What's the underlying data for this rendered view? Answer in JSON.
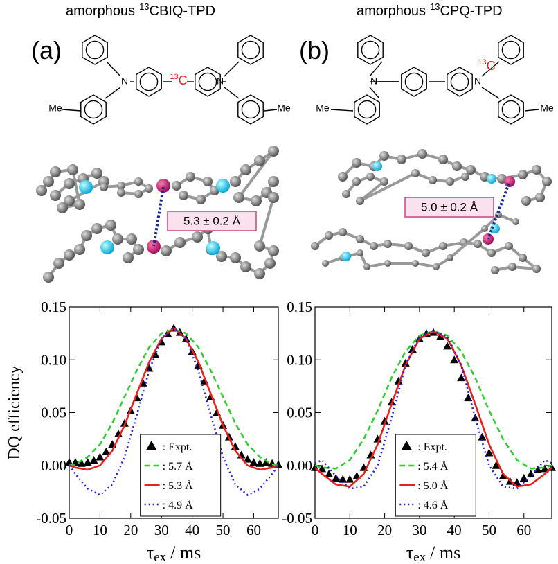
{
  "chart_data": [
    {
      "type": "line",
      "panel_label": "(a)",
      "title": {
        "prefix": "amorphous",
        "isotope": "13",
        "compound": "CBIQ-TPD"
      },
      "structure": {
        "labels": [
          "N",
          "N",
          "Me",
          "Me"
        ],
        "isotope": "13",
        "atom": "C"
      },
      "annotation": "5.3 ± 0.2 Å",
      "ylabel": "DQ efficiency",
      "xlabel": {
        "symbol": "τ",
        "subscript": "ex",
        "unit": "/ ms"
      },
      "xlim": [
        0,
        68
      ],
      "xticks": [
        0,
        10,
        20,
        30,
        40,
        50,
        60
      ],
      "ylim": [
        -0.05,
        0.15
      ],
      "yticks": [
        -0.05,
        {
          "value": 0,
          "label": "0.00"
        },
        0.05,
        {
          "value": 0.1,
          "label": "0.10"
        },
        0.15
      ],
      "legend": "lower center",
      "series": [
        {
          "name": ": Expt.",
          "color": "#000000",
          "style": "markers",
          "x": [
            0,
            2,
            4,
            6,
            8,
            10,
            12,
            14,
            16,
            18,
            20,
            22,
            24,
            26,
            28,
            30,
            32,
            34,
            36,
            38,
            40,
            42,
            44,
            46,
            48,
            50,
            52,
            54,
            56,
            58,
            60,
            62,
            64,
            66,
            68
          ],
          "values": [
            0.003,
            0.003,
            0.002,
            0.003,
            0.005,
            0.008,
            0.013,
            0.02,
            0.03,
            0.04,
            0.052,
            0.064,
            0.078,
            0.092,
            0.105,
            0.117,
            0.125,
            0.13,
            0.126,
            0.12,
            0.108,
            0.095,
            0.08,
            0.065,
            0.05,
            0.038,
            0.027,
            0.018,
            0.01,
            0.006,
            0.003,
            0.002,
            0.003,
            0.002,
            0.001
          ]
        },
        {
          "name": ": 5.7 Å",
          "color": "#33cc33",
          "style": "dashed",
          "x": [
            0,
            2,
            6,
            10,
            14,
            18,
            22,
            26,
            30,
            34,
            38,
            42,
            46,
            50,
            54,
            58,
            62,
            66,
            68
          ],
          "values": [
            0,
            0.001,
            0.008,
            0.02,
            0.04,
            0.065,
            0.09,
            0.112,
            0.125,
            0.129,
            0.125,
            0.112,
            0.09,
            0.065,
            0.04,
            0.02,
            0.008,
            0.001,
            0
          ]
        },
        {
          "name": ": 5.3 Å",
          "color": "#e8211f",
          "style": "solid",
          "x": [
            0,
            2,
            6,
            10,
            14,
            18,
            22,
            26,
            30,
            34,
            38,
            42,
            46,
            50,
            54,
            58,
            62,
            66,
            68
          ],
          "values": [
            0,
            -0.002,
            -0.004,
            0,
            0.014,
            0.038,
            0.068,
            0.098,
            0.12,
            0.13,
            0.12,
            0.098,
            0.068,
            0.038,
            0.014,
            0,
            -0.004,
            -0.002,
            0
          ]
        },
        {
          "name": ": 4.9 Å",
          "color": "#2222cc",
          "style": "dotted",
          "x": [
            0,
            2,
            6,
            10,
            14,
            18,
            22,
            26,
            30,
            34,
            38,
            42,
            46,
            50,
            54,
            58,
            62,
            66,
            68
          ],
          "values": [
            0,
            -0.008,
            -0.022,
            -0.028,
            -0.018,
            0.008,
            0.048,
            0.09,
            0.12,
            0.13,
            0.12,
            0.09,
            0.048,
            0.008,
            -0.018,
            -0.028,
            -0.022,
            -0.008,
            0
          ]
        }
      ]
    },
    {
      "type": "line",
      "panel_label": "(b)",
      "title": {
        "prefix": "amorphous",
        "isotope": "13",
        "compound": "CPQ-TPD"
      },
      "structure": {
        "labels": [
          "N",
          "N",
          "Me",
          "Me"
        ],
        "isotope": "13",
        "atom": "C"
      },
      "annotation": "5.0 ± 0.2 Å",
      "xlabel": {
        "symbol": "τ",
        "subscript": "ex",
        "unit": "/ ms"
      },
      "xlim": [
        0,
        68
      ],
      "xticks": [
        0,
        10,
        20,
        30,
        40,
        50,
        60
      ],
      "ylim": [
        -0.05,
        0.15
      ],
      "yticks": [
        -0.05,
        {
          "value": 0,
          "label": "0.00"
        },
        0.05,
        {
          "value": 0.1,
          "label": "0.10"
        },
        0.15
      ],
      "legend": "lower center",
      "series": [
        {
          "name": ": Expt.",
          "color": "#000000",
          "style": "markers",
          "x": [
            0,
            2,
            4,
            6,
            8,
            10,
            12,
            14,
            16,
            18,
            20,
            22,
            24,
            26,
            28,
            30,
            32,
            34,
            36,
            38,
            40,
            42,
            44,
            46,
            48,
            50,
            52,
            54,
            56,
            58,
            60,
            62,
            64,
            66,
            68
          ],
          "values": [
            -0.002,
            -0.003,
            -0.008,
            -0.012,
            -0.013,
            -0.013,
            -0.01,
            -0.002,
            0.01,
            0.025,
            0.042,
            0.06,
            0.08,
            0.097,
            0.11,
            0.12,
            0.125,
            0.126,
            0.122,
            0.113,
            0.1,
            0.083,
            0.064,
            0.045,
            0.027,
            0.012,
            0,
            -0.01,
            -0.015,
            -0.016,
            -0.012,
            -0.008,
            -0.004,
            -0.003,
            -0.002
          ]
        },
        {
          "name": ": 5.4 Å",
          "color": "#33cc33",
          "style": "dashed",
          "x": [
            0,
            2,
            6,
            10,
            14,
            18,
            22,
            26,
            30,
            34,
            38,
            42,
            46,
            50,
            54,
            58,
            62,
            66,
            68
          ],
          "values": [
            0,
            -0.002,
            -0.003,
            0.005,
            0.025,
            0.052,
            0.083,
            0.108,
            0.123,
            0.127,
            0.123,
            0.108,
            0.083,
            0.052,
            0.025,
            0.005,
            -0.003,
            -0.002,
            0
          ]
        },
        {
          "name": ": 5.0 Å",
          "color": "#e8211f",
          "style": "solid",
          "x": [
            0,
            2,
            6,
            10,
            14,
            18,
            22,
            26,
            30,
            34,
            38,
            42,
            46,
            50,
            54,
            58,
            62,
            66,
            68
          ],
          "values": [
            -0.002,
            -0.008,
            -0.018,
            -0.02,
            -0.008,
            0.02,
            0.058,
            0.095,
            0.12,
            0.127,
            0.12,
            0.095,
            0.058,
            0.02,
            -0.008,
            -0.02,
            -0.018,
            -0.008,
            -0.002
          ]
        },
        {
          "name": ": 4.6 Å",
          "color": "#2222cc",
          "style": "dotted",
          "x": [
            0,
            2,
            6,
            10,
            14,
            18,
            22,
            26,
            30,
            34,
            38,
            42,
            46,
            50,
            54,
            58,
            62,
            66,
            68
          ],
          "values": [
            0.002,
            0.005,
            -0.01,
            -0.022,
            -0.02,
            0,
            0.045,
            0.095,
            0.122,
            0.127,
            0.122,
            0.095,
            0.045,
            0,
            -0.02,
            -0.022,
            -0.01,
            0.005,
            0.002
          ]
        }
      ]
    }
  ]
}
